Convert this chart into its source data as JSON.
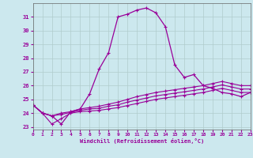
{
  "xlabel": "Windchill (Refroidissement éolien,°C)",
  "x": [
    0,
    1,
    2,
    3,
    4,
    5,
    6,
    7,
    8,
    9,
    10,
    11,
    12,
    13,
    14,
    15,
    16,
    17,
    18,
    19,
    20,
    21,
    22,
    23
  ],
  "line_main": [
    24.6,
    24.0,
    23.8,
    23.2,
    24.1,
    24.3,
    25.4,
    27.2,
    28.4,
    31.0,
    31.2,
    31.5,
    31.65,
    31.3,
    30.3,
    27.5,
    26.6,
    26.8,
    26.0,
    25.8,
    25.5,
    25.4,
    25.2,
    25.5
  ],
  "line_top": [
    24.6,
    24.0,
    23.8,
    24.0,
    24.1,
    24.3,
    24.4,
    24.5,
    24.65,
    24.8,
    25.0,
    25.2,
    25.35,
    25.5,
    25.6,
    25.7,
    25.8,
    25.9,
    26.0,
    26.15,
    26.3,
    26.15,
    26.0,
    26.0
  ],
  "line_mid": [
    24.6,
    24.0,
    23.8,
    23.9,
    24.05,
    24.2,
    24.3,
    24.35,
    24.5,
    24.6,
    24.8,
    24.95,
    25.1,
    25.25,
    25.35,
    25.45,
    25.55,
    25.65,
    25.75,
    25.9,
    26.05,
    25.9,
    25.75,
    25.75
  ],
  "line_bot": [
    24.6,
    24.0,
    23.2,
    23.6,
    24.0,
    24.1,
    24.15,
    24.2,
    24.3,
    24.4,
    24.55,
    24.7,
    24.85,
    25.0,
    25.1,
    25.2,
    25.3,
    25.4,
    25.5,
    25.65,
    25.8,
    25.65,
    25.5,
    25.5
  ],
  "line_color": "#990099",
  "bg_color": "#cce8ee",
  "grid_color": "#b0cccc",
  "ylim": [
    22.8,
    32.0
  ],
  "yticks": [
    23,
    24,
    25,
    26,
    27,
    28,
    29,
    30,
    31
  ],
  "xlim": [
    0,
    23
  ],
  "xticks": [
    0,
    1,
    2,
    3,
    4,
    5,
    6,
    7,
    8,
    9,
    10,
    11,
    12,
    13,
    14,
    15,
    16,
    17,
    18,
    19,
    20,
    21,
    22,
    23
  ]
}
